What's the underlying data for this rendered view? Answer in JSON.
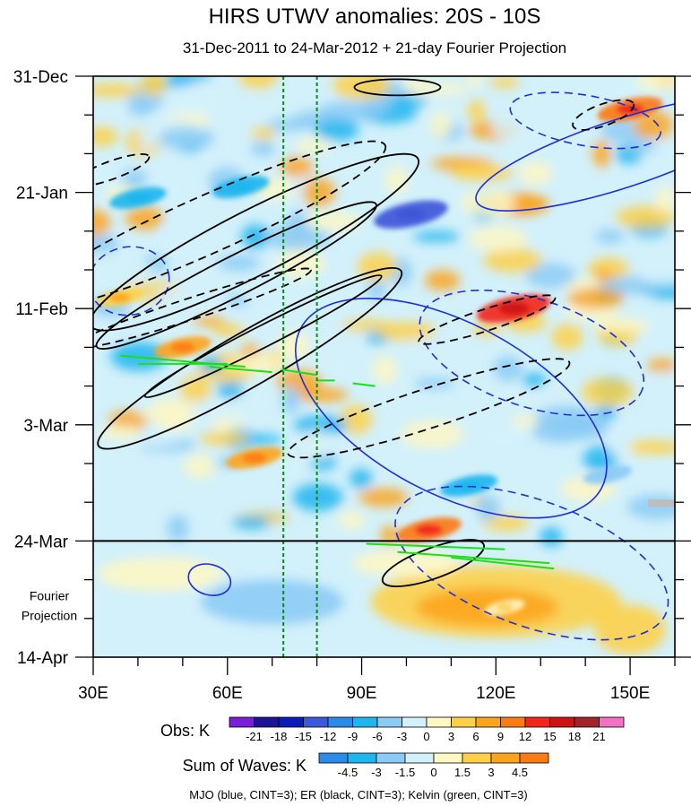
{
  "chart_data": {
    "type": "heatmap",
    "title": "HIRS UTWV anomalies: 20S - 10S",
    "subtitle": "31-Dec-2011 to 24-Mar-2012 + 21-day Fourier Projection",
    "x_axis": {
      "range_deg_east": [
        30,
        160
      ],
      "ticks": [
        30,
        60,
        90,
        120,
        150
      ],
      "tick_labels": [
        "30E",
        "60E",
        "90E",
        "120E",
        "150E"
      ]
    },
    "y_axis": {
      "range_days_from_start": [
        0,
        105
      ],
      "ticks": [
        0,
        21,
        42,
        63,
        84,
        105
      ],
      "tick_labels": [
        "31-Dec",
        "21-Jan",
        "11-Feb",
        "3-Mar",
        "24-Mar",
        "14-Apr"
      ]
    },
    "projection_label": [
      "Fourier",
      "Projection"
    ],
    "observation_end_day": 84,
    "reference_longitudes": [
      72.5,
      80
    ],
    "obs_colorbar": {
      "title": "Obs: K",
      "levels": [
        "-21",
        "-18",
        "-15",
        "-12",
        "-9",
        "-6",
        "-3",
        "0",
        "3",
        "6",
        "9",
        "12",
        "15",
        "18",
        "21"
      ],
      "colors": [
        "#7a1fd6",
        "#1d1396",
        "#0c1cb8",
        "#3c57d8",
        "#2a8bea",
        "#1fb5ee",
        "#8ccbf5",
        "#d3f1fb",
        "#fdf7c4",
        "#fdd04a",
        "#fca51c",
        "#fb7b13",
        "#f1271b",
        "#cc1414",
        "#a3232a",
        "#f56fc4"
      ]
    },
    "waves_colorbar": {
      "title": "Sum of Waves: K",
      "levels": [
        "-4.5",
        "-3",
        "-1.5",
        "0",
        "1.5",
        "3",
        "4.5"
      ],
      "colors": [
        "#2a8bea",
        "#1fb5ee",
        "#8ccbf5",
        "#d3f1fb",
        "#fdf7c4",
        "#fdd04a",
        "#fca51c",
        "#fb7b13"
      ]
    },
    "contour_legend": "MJO (blue, CINT=3); ER (black, CINT=3); Kelvin (green, CINT=3)",
    "series": [
      {
        "name": "MJO",
        "color": "#1f2ed8",
        "cint": 3
      },
      {
        "name": "ER",
        "color": "#000000",
        "cint": 3
      },
      {
        "name": "Kelvin",
        "color": "#19e019",
        "cint": 3
      }
    ],
    "anomaly_features": [
      {
        "sign": "negative",
        "value_K": -15,
        "lon": 101,
        "day": 25
      },
      {
        "sign": "negative",
        "value_K": -9,
        "lon": 63,
        "day": 20
      },
      {
        "sign": "negative",
        "value_K": -9,
        "lon": 40,
        "day": 22
      },
      {
        "sign": "negative",
        "value_K": -9,
        "lon": 114,
        "day": 74
      },
      {
        "sign": "negative",
        "value_K": -6,
        "lon": 145,
        "day": 72
      },
      {
        "sign": "positive",
        "value_K": 15,
        "lon": 124,
        "day": 42
      },
      {
        "sign": "positive",
        "value_K": 12,
        "lon": 150,
        "day": 6
      },
      {
        "sign": "positive",
        "value_K": 12,
        "lon": 105,
        "day": 82
      },
      {
        "sign": "positive",
        "value_K": 9,
        "lon": 50,
        "day": 49
      },
      {
        "sign": "positive",
        "value_K": 9,
        "lon": 66,
        "day": 69
      },
      {
        "sign": "positive",
        "value_K": 6,
        "lon": 36,
        "day": 40
      },
      {
        "sign": "positive",
        "value_K": 3,
        "lon": 122,
        "day": 96
      }
    ]
  }
}
